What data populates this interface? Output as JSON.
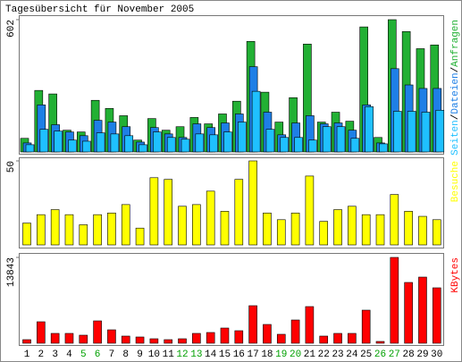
{
  "chart_data": [
    {
      "type": "bar",
      "title": "Tagesübersicht für November 2005",
      "ylim": [
        0,
        602
      ],
      "yticks": [
        602
      ],
      "legend_separator": "/",
      "series": [
        {
          "name": "Seiten",
          "color": "#1fc0ff",
          "values": [
            33,
            103,
            95,
            54,
            49,
            87,
            82,
            74,
            33,
            91,
            66,
            58,
            82,
            78,
            91,
            136,
            276,
            103,
            66,
            66,
            54,
            115,
            115,
            62,
            206,
            37,
            185,
            185,
            181,
            190
          ]
        },
        {
          "name": "Dateien",
          "color": "#1e7fe6",
          "values": [
            41,
            214,
            124,
            91,
            74,
            144,
            136,
            115,
            45,
            111,
            82,
            66,
            128,
            111,
            132,
            173,
            388,
            181,
            78,
            132,
            165,
            128,
            132,
            99,
            214,
            41,
            379,
            305,
            289,
            289
          ]
        },
        {
          "name": "Anfragen",
          "color": "#22b034",
          "values": [
            62,
            280,
            264,
            99,
            91,
            235,
            198,
            165,
            54,
            152,
            99,
            115,
            157,
            128,
            173,
            231,
            503,
            272,
            136,
            247,
            491,
            136,
            181,
            140,
            569,
            66,
            602,
            548,
            470,
            487
          ]
        }
      ]
    },
    {
      "type": "bar",
      "ylim": [
        0,
        50
      ],
      "yticks": [
        50
      ],
      "series": [
        {
          "name": "Besuche",
          "color": "#ffff00",
          "values": [
            13,
            18,
            21,
            18,
            12,
            18,
            19,
            24,
            10,
            40,
            39,
            23,
            24,
            32,
            20,
            39,
            50,
            19,
            15,
            19,
            41,
            14,
            21,
            23,
            18,
            18,
            30,
            20,
            17,
            15
          ]
        }
      ]
    },
    {
      "type": "bar",
      "ylim": [
        0,
        13843
      ],
      "yticks": [
        13843
      ],
      "categories": [
        "1",
        "2",
        "3",
        "4",
        "5",
        "6",
        "7",
        "8",
        "9",
        "10",
        "11",
        "12",
        "13",
        "14",
        "15",
        "16",
        "17",
        "18",
        "19",
        "20",
        "21",
        "22",
        "23",
        "24",
        "25",
        "26",
        "27",
        "28",
        "29",
        "30"
      ],
      "category_color": "#000000",
      "highlight_color": "#00a000",
      "highlight_indices": [
        4,
        5,
        11,
        12,
        18,
        19,
        25,
        26
      ],
      "series": [
        {
          "name": "KBytes",
          "color": "#ff0000",
          "values": [
            577,
            3461,
            1586,
            1586,
            1298,
            3605,
            2163,
            1154,
            1009,
            721,
            577,
            721,
            1586,
            1730,
            2451,
            2019,
            6056,
            3028,
            1442,
            3749,
            5912,
            1154,
            1586,
            1586,
            5335,
            288,
            13843,
            9805,
            10670,
            8940
          ]
        }
      ]
    }
  ]
}
